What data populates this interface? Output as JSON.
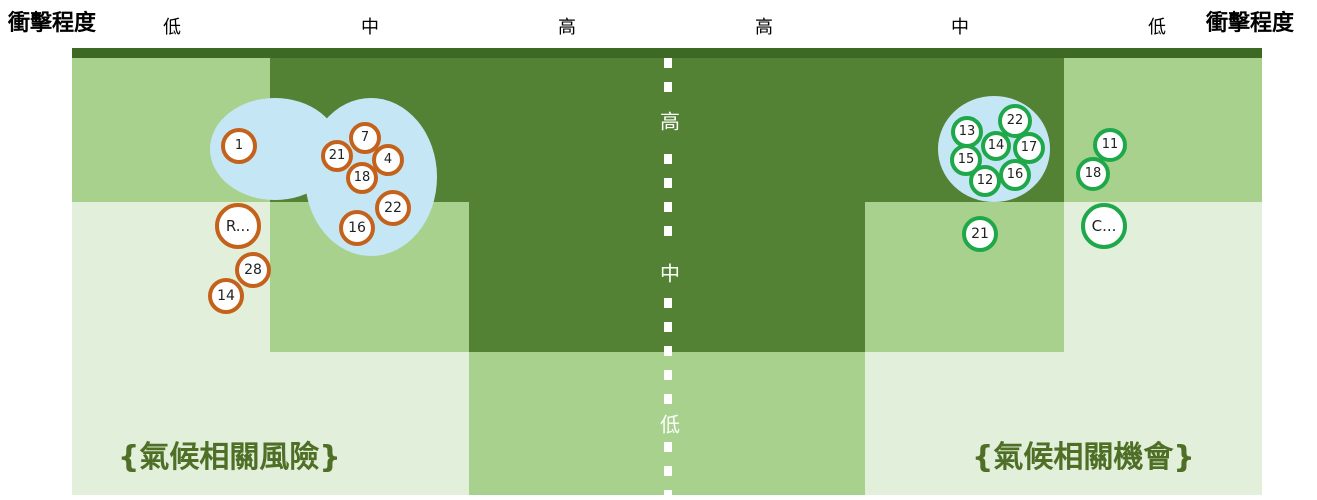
{
  "header": {
    "impact_label_left": "衝擊程度",
    "impact_label_right": "衝擊程度",
    "levels_left": [
      "低",
      "中",
      "高"
    ],
    "levels_right": [
      "高",
      "中",
      "低"
    ]
  },
  "axis": {
    "high": "高",
    "mid": "中",
    "low": "低"
  },
  "panels": {
    "risk_title": "{氣候相關風險}",
    "opportunity_title": "{氣候相關機會}"
  },
  "colors": {
    "dark_green": "#548235",
    "medium_green": "#a9d18e",
    "light_green": "#e2efda",
    "risk_border": "#c4621c",
    "opportunity_border": "#1fa84a",
    "cluster_blue": "#c5e7f5"
  },
  "risks": [
    {
      "label": "1"
    },
    {
      "label": "7"
    },
    {
      "label": "21"
    },
    {
      "label": "4"
    },
    {
      "label": "18"
    },
    {
      "label": "22"
    },
    {
      "label": "16"
    },
    {
      "label": "R..."
    },
    {
      "label": "28"
    },
    {
      "label": "14"
    }
  ],
  "opportunities": [
    {
      "label": "13"
    },
    {
      "label": "22"
    },
    {
      "label": "14"
    },
    {
      "label": "17"
    },
    {
      "label": "15"
    },
    {
      "label": "16"
    },
    {
      "label": "12"
    },
    {
      "label": "11"
    },
    {
      "label": "18"
    },
    {
      "label": "C..."
    },
    {
      "label": "21"
    }
  ]
}
